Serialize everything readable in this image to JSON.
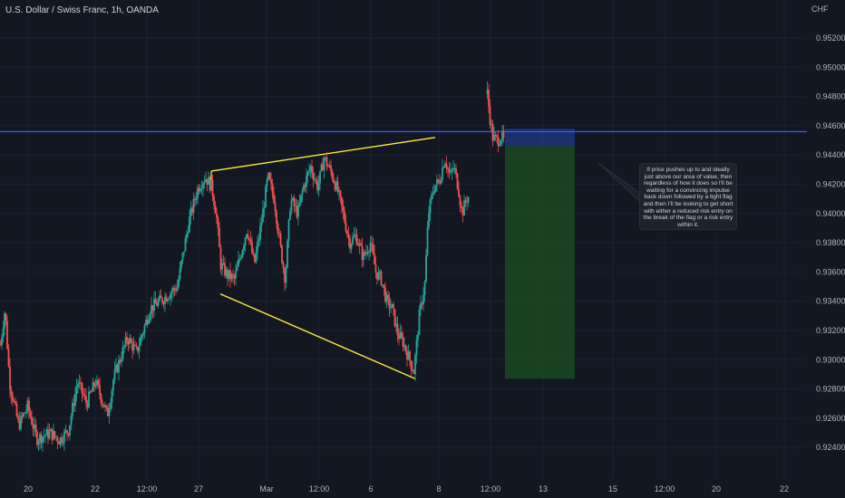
{
  "header": {
    "title": "U.S. Dollar / Swiss Franc, 1h, OANDA",
    "currency": "CHF"
  },
  "colors": {
    "background": "#131722",
    "up_candle": "#26a69a",
    "down_candle": "#ef5350",
    "horizontal_line": "#2962ff",
    "trendline": "#ffeb3b",
    "stop_zone": "#1e3a8a",
    "target_zone": "#1b5e20",
    "grid": "#1c2030"
  },
  "annotation": {
    "text": "If price pushes up to and ideally just above our area of value, then regardless of how it does so I'll be waiting for a convincing impulse back down followed by a tight flag and then I'll be looking to get short with either a reduced risk entry on the break of the flag or a risk entry within it."
  },
  "chart_data": {
    "type": "candlestick",
    "y_ticks": [
      "0.95200",
      "0.95000",
      "0.94800",
      "0.94600",
      "0.94400",
      "0.94200",
      "0.94000",
      "0.93800",
      "0.93600",
      "0.93400",
      "0.93200",
      "0.93000",
      "0.92800",
      "0.92600",
      "0.92400"
    ],
    "x_ticks": [
      "20",
      "22",
      "12:00",
      "27",
      "Mar",
      "12:00",
      "6",
      "8",
      "12:00",
      "13",
      "15",
      "12:00",
      "20",
      "22"
    ],
    "ylim": [
      0.9236,
      0.9534
    ],
    "grid": true,
    "horizontal_level": 0.9456,
    "trendlines": [
      {
        "name": "upper",
        "from": [
          "27",
          0.9429
        ],
        "to": [
          "8",
          0.9452
        ]
      },
      {
        "name": "lower",
        "from": [
          "27",
          0.9345
        ],
        "to": [
          "8",
          0.9287
        ]
      }
    ],
    "short_position": {
      "entry": 0.9446,
      "stop": 0.9458,
      "target": 0.9287
    },
    "price_path": [
      [
        0,
        0.931
      ],
      [
        5,
        0.9335
      ],
      [
        10,
        0.9285
      ],
      [
        20,
        0.9255
      ],
      [
        30,
        0.9268
      ],
      [
        40,
        0.9246
      ],
      [
        55,
        0.925
      ],
      [
        65,
        0.9245
      ],
      [
        75,
        0.9252
      ],
      [
        85,
        0.9285
      ],
      [
        95,
        0.927
      ],
      [
        105,
        0.9285
      ],
      [
        118,
        0.9262
      ],
      [
        125,
        0.9288
      ],
      [
        140,
        0.9315
      ],
      [
        150,
        0.9305
      ],
      [
        165,
        0.9335
      ],
      [
        180,
        0.9342
      ],
      [
        195,
        0.935
      ],
      [
        208,
        0.9395
      ],
      [
        218,
        0.9418
      ],
      [
        226,
        0.9425
      ],
      [
        233,
        0.9418
      ],
      [
        238,
        0.94
      ],
      [
        243,
        0.9365
      ],
      [
        250,
        0.9358
      ],
      [
        258,
        0.9355
      ],
      [
        265,
        0.9372
      ],
      [
        272,
        0.939
      ],
      [
        280,
        0.9365
      ],
      [
        288,
        0.9395
      ],
      [
        295,
        0.9425
      ],
      [
        302,
        0.941
      ],
      [
        308,
        0.938
      ],
      [
        314,
        0.9355
      ],
      [
        320,
        0.941
      ],
      [
        328,
        0.94
      ],
      [
        334,
        0.9418
      ],
      [
        342,
        0.9432
      ],
      [
        350,
        0.9418
      ],
      [
        357,
        0.9438
      ],
      [
        365,
        0.9428
      ],
      [
        372,
        0.9415
      ],
      [
        378,
        0.94
      ],
      [
        385,
        0.938
      ],
      [
        392,
        0.9385
      ],
      [
        400,
        0.937
      ],
      [
        408,
        0.938
      ],
      [
        414,
        0.936
      ],
      [
        420,
        0.9355
      ],
      [
        426,
        0.934
      ],
      [
        432,
        0.9335
      ],
      [
        438,
        0.9318
      ],
      [
        444,
        0.9312
      ],
      [
        450,
        0.9302
      ],
      [
        456,
        0.9292
      ],
      [
        462,
        0.933
      ],
      [
        468,
        0.9352
      ],
      [
        472,
        0.94
      ],
      [
        478,
        0.9418
      ],
      [
        484,
        0.9422
      ],
      [
        490,
        0.9438
      ],
      [
        496,
        0.9425
      ],
      [
        500,
        0.9432
      ],
      [
        505,
        0.9418
      ],
      [
        509,
        0.94
      ],
      [
        514,
        0.941
      ],
      [
        517,
        0.9412
      ]
    ],
    "late_path": [
      [
        537,
        0.9482
      ],
      [
        540,
        0.9465
      ],
      [
        543,
        0.9452
      ],
      [
        548,
        0.945
      ],
      [
        553,
        0.9453
      ],
      [
        556,
        0.9448
      ]
    ]
  }
}
